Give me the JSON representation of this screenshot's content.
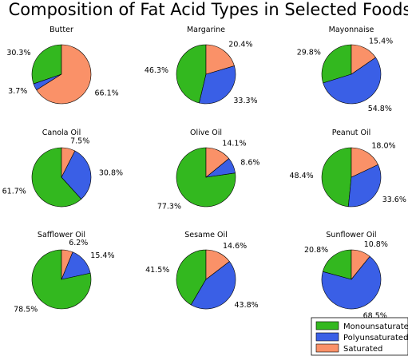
{
  "chart_data": {
    "type": "pie",
    "title": "Composition of Fat Acid Types in Selected Foods",
    "categories": [
      "Monounsaturated",
      "Polyunsaturated",
      "Saturated"
    ],
    "colors": {
      "Monounsaturated": "#33b81f",
      "Polyunsaturated": "#3a5fe6",
      "Saturated": "#fa9168"
    },
    "legend": {
      "placement": "bottom-right",
      "entries": [
        "Monounsaturated",
        "Polyunsaturated",
        "Saturated"
      ]
    },
    "pies": [
      {
        "name": "Butter",
        "values": [
          30.3,
          3.7,
          66.1
        ],
        "labels": [
          "30.3%",
          "3.7%",
          "66.1%"
        ]
      },
      {
        "name": "Margarine",
        "values": [
          46.3,
          33.3,
          20.4
        ],
        "labels": [
          "46.3%",
          "33.3%",
          "20.4%"
        ]
      },
      {
        "name": "Mayonnaise",
        "values": [
          29.8,
          54.8,
          15.4
        ],
        "labels": [
          "29.8%",
          "54.8%",
          "15.4%"
        ]
      },
      {
        "name": "Canola Oil",
        "values": [
          61.7,
          30.8,
          7.5
        ],
        "labels": [
          "61.7%",
          "30.8%",
          "7.5%"
        ]
      },
      {
        "name": "Olive Oil",
        "values": [
          77.3,
          8.6,
          14.1
        ],
        "labels": [
          "77.3%",
          "8.6%",
          "14.1%"
        ]
      },
      {
        "name": "Peanut Oil",
        "values": [
          48.4,
          33.6,
          18.0
        ],
        "labels": [
          "48.4%",
          "33.6%",
          "18.0%"
        ]
      },
      {
        "name": "Safflower Oil",
        "values": [
          78.5,
          15.4,
          6.2
        ],
        "labels": [
          "78.5%",
          "15.4%",
          "6.2%"
        ]
      },
      {
        "name": "Sesame Oil",
        "values": [
          41.5,
          43.8,
          14.6
        ],
        "labels": [
          "41.5%",
          "43.8%",
          "14.6%"
        ]
      },
      {
        "name": "Sunflower Oil",
        "values": [
          20.8,
          68.5,
          10.8
        ],
        "labels": [
          "20.8%",
          "68.5%",
          "10.8%"
        ]
      }
    ]
  }
}
